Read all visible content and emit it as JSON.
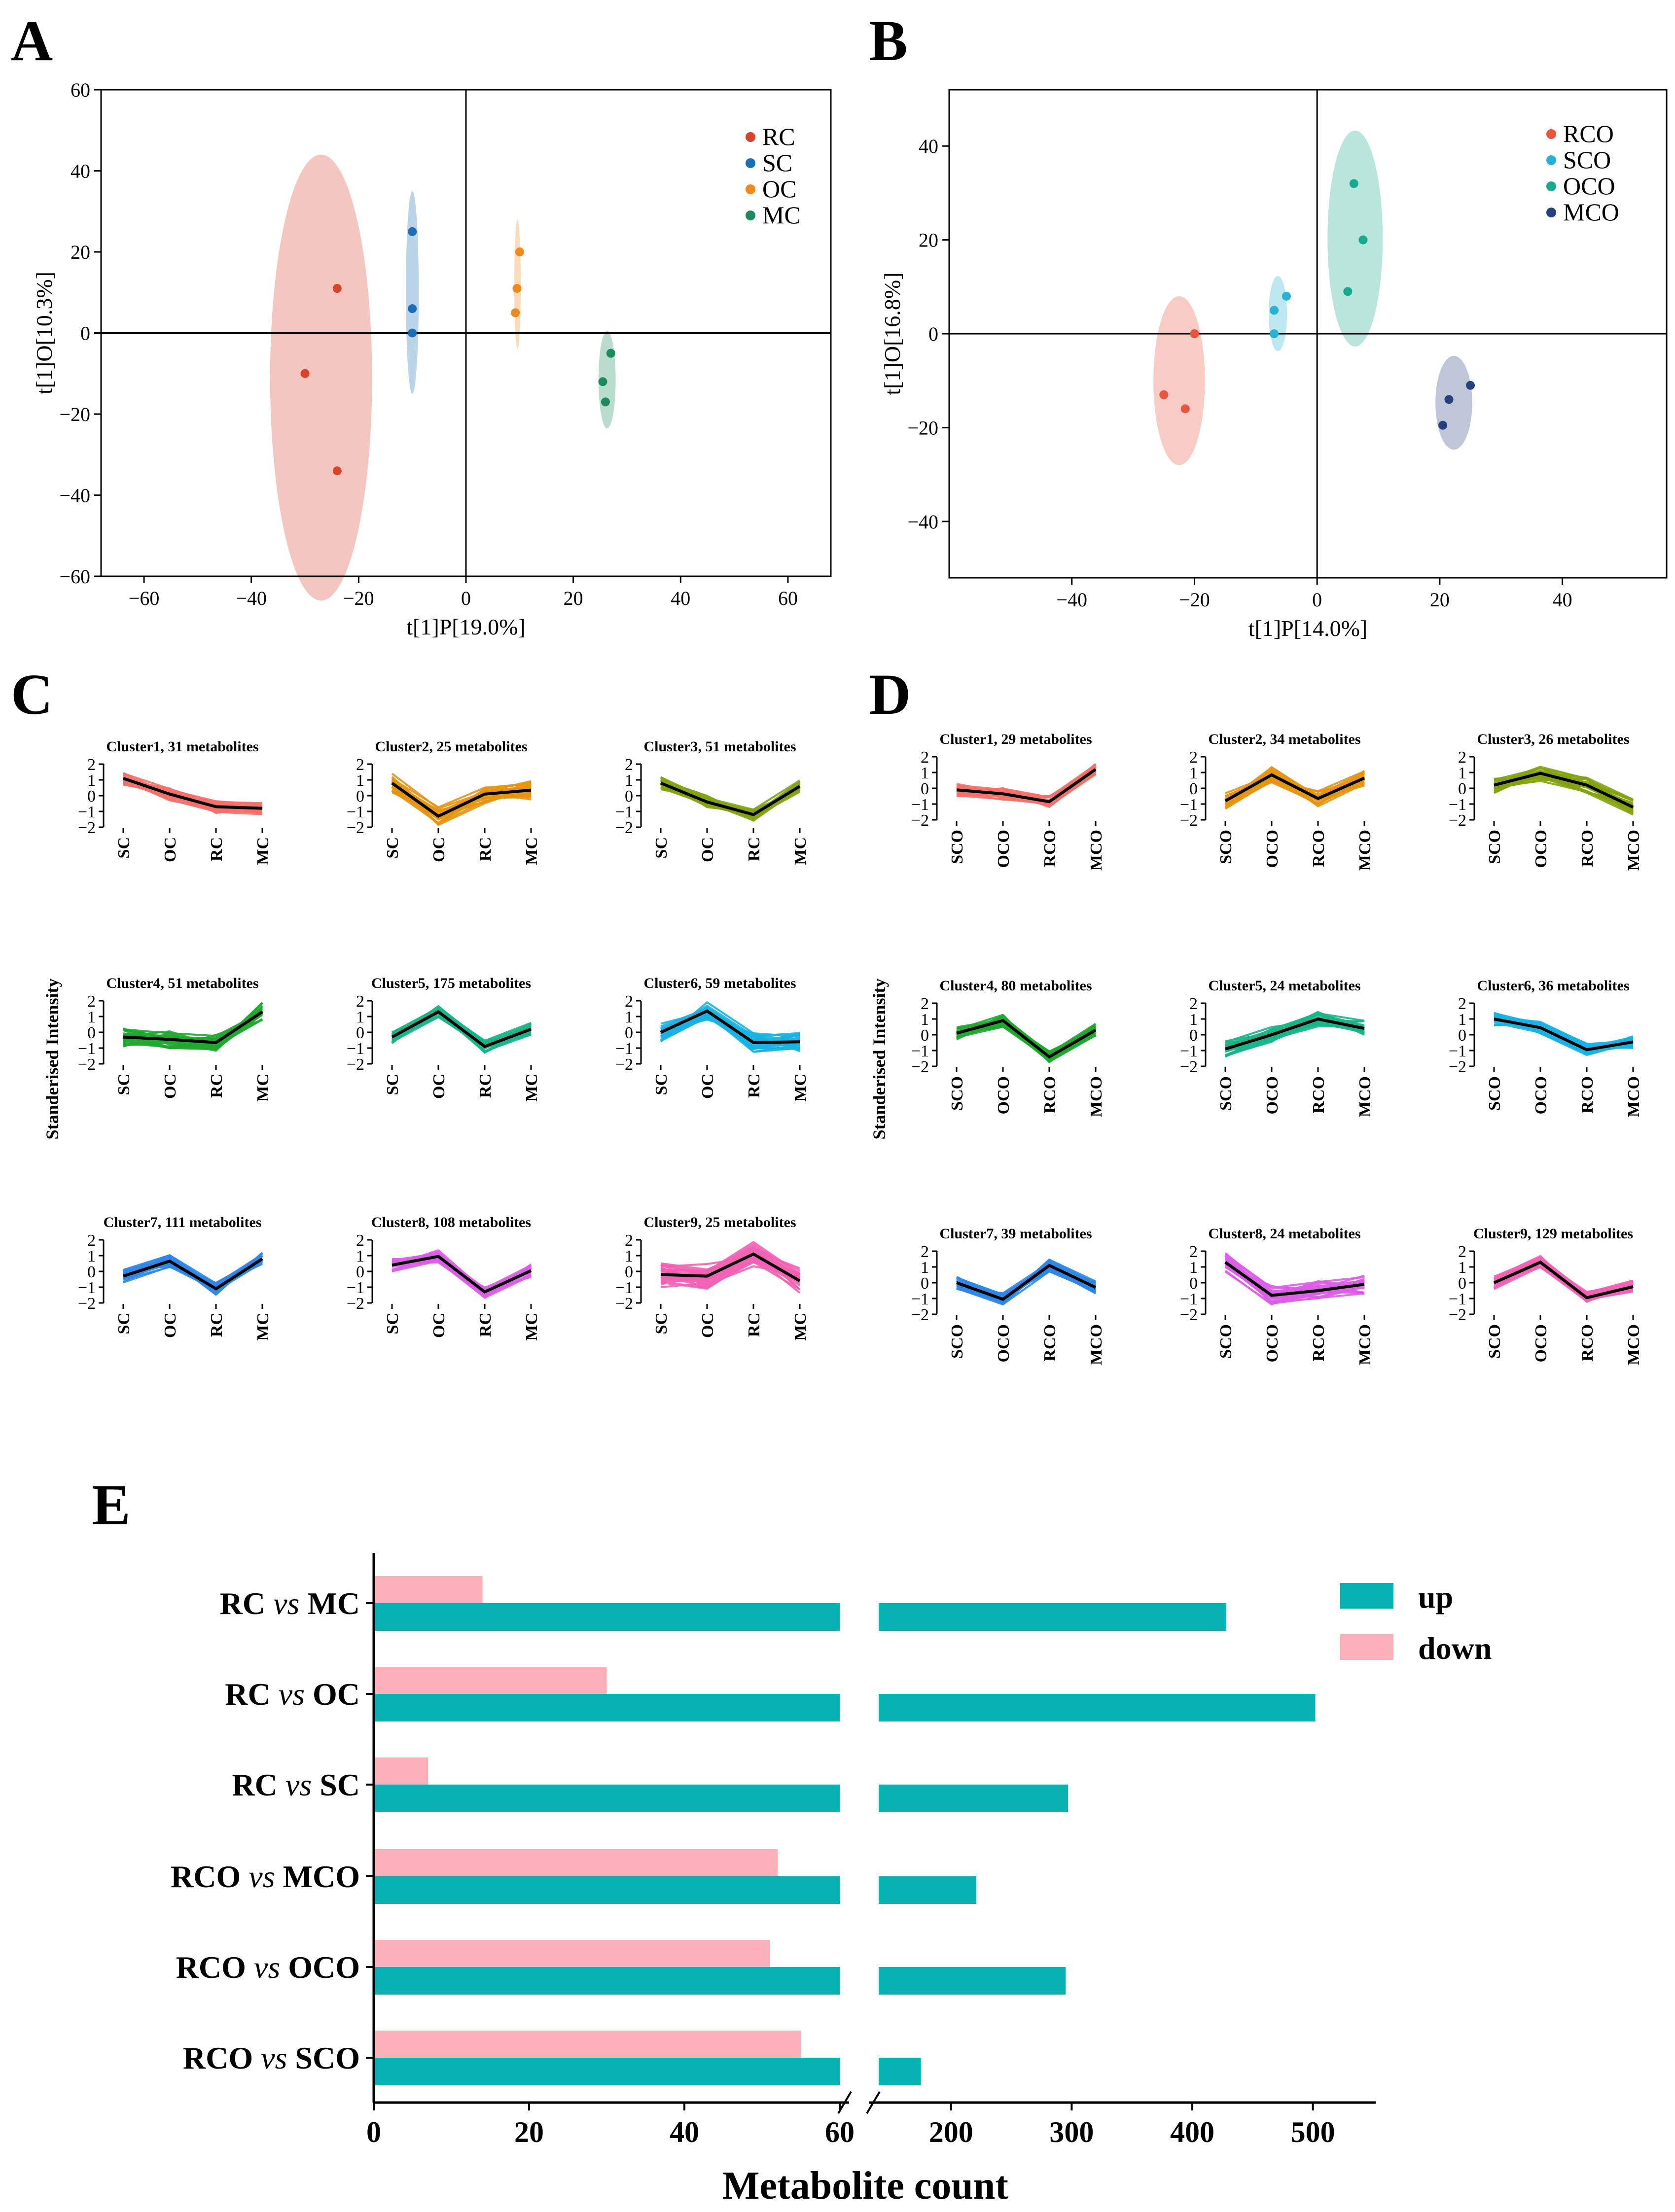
{
  "colors": {
    "RC": "#d9422b",
    "SC": "#1b6fb5",
    "OC": "#f0891b",
    "MC": "#1c8a5c",
    "RCO": "#e8543d",
    "SCO": "#27b3d1",
    "OCO": "#17a890",
    "MCO": "#27417a",
    "up": "#08b2b4",
    "down": "#fbb0b9"
  },
  "chart_data": [
    {
      "panel": "A",
      "type": "scatter",
      "xlabel": "t[1]P[19.0%]",
      "ylabel": "t[1]O[10.3%]",
      "xlim": [
        -68,
        68
      ],
      "ylim": [
        -60,
        60
      ],
      "xticks": [
        -60,
        -40,
        -20,
        0,
        20,
        40,
        60
      ],
      "yticks": [
        -60,
        -40,
        -20,
        0,
        20,
        40,
        60
      ],
      "legend": [
        "RC",
        "SC",
        "OC",
        "MC"
      ],
      "series": [
        {
          "name": "RC",
          "points": [
            [
              -24,
              11
            ],
            [
              -30,
              -10
            ],
            [
              -24,
              -34
            ]
          ],
          "ellipse": {
            "cx": -27,
            "cy": -11,
            "rx": 9.5,
            "ry": 55
          }
        },
        {
          "name": "SC",
          "points": [
            [
              -10,
              25
            ],
            [
              -10,
              6
            ],
            [
              -10,
              0
            ]
          ],
          "ellipse": {
            "cx": -10,
            "cy": 10,
            "rx": 1.2,
            "ry": 25
          }
        },
        {
          "name": "OC",
          "points": [
            [
              10,
              20
            ],
            [
              9.5,
              11
            ],
            [
              9.2,
              5
            ]
          ],
          "ellipse": {
            "cx": 9.6,
            "cy": 12,
            "rx": 0.6,
            "ry": 16
          }
        },
        {
          "name": "MC",
          "points": [
            [
              27,
              -5
            ],
            [
              25.5,
              -12
            ],
            [
              26,
              -17
            ]
          ],
          "ellipse": {
            "cx": 26.3,
            "cy": -11.5,
            "rx": 1.6,
            "ry": 12
          }
        }
      ]
    },
    {
      "panel": "B",
      "type": "scatter",
      "xlabel": "t[1]P[14.0%]",
      "ylabel": "t[1]O[16.8%]",
      "xlim": [
        -60,
        57
      ],
      "ylim": [
        -52,
        52
      ],
      "xticks": [
        -40,
        -20,
        0,
        20,
        40
      ],
      "yticks": [
        -40,
        -20,
        0,
        20,
        40
      ],
      "legend": [
        "RCO",
        "SCO",
        "OCO",
        "MCO"
      ],
      "series": [
        {
          "name": "RCO",
          "points": [
            [
              -20,
              0
            ],
            [
              -25,
              -13
            ],
            [
              -21.5,
              -16
            ]
          ],
          "ellipse": {
            "cx": -22.5,
            "cy": -10,
            "rx": 4.2,
            "ry": 18
          }
        },
        {
          "name": "SCO",
          "points": [
            [
              -5,
              8
            ],
            [
              -7,
              5
            ],
            [
              -7,
              0
            ]
          ],
          "ellipse": {
            "cx": -6.4,
            "cy": 4.3,
            "rx": 1.5,
            "ry": 8
          }
        },
        {
          "name": "OCO",
          "points": [
            [
              6,
              32
            ],
            [
              7.5,
              20
            ],
            [
              5,
              9
            ]
          ],
          "ellipse": {
            "cx": 6.2,
            "cy": 20.3,
            "rx": 4.5,
            "ry": 23
          }
        },
        {
          "name": "MCO",
          "points": [
            [
              25,
              -11
            ],
            [
              21.5,
              -14
            ],
            [
              20.5,
              -19.5
            ]
          ],
          "ellipse": {
            "cx": 22.3,
            "cy": -14.7,
            "rx": 3,
            "ry": 10
          }
        }
      ]
    },
    {
      "panel": "C",
      "type": "line",
      "ylabel": "Standerised Intensity",
      "ylim": [
        -2,
        2
      ],
      "yticks": [
        -2,
        -1,
        0,
        1,
        2
      ],
      "categories": [
        "SC",
        "OC",
        "RC",
        "MC"
      ],
      "clusters": [
        {
          "title": "Cluster1, 31 metabolites",
          "color": "#f4706a",
          "mean": [
            1.1,
            0.1,
            -0.7,
            -0.8
          ],
          "spread": 0.4
        },
        {
          "title": "Cluster2, 25 metabolites",
          "color": "#e6950f",
          "mean": [
            0.8,
            -1.3,
            0.1,
            0.35
          ],
          "spread": 0.6
        },
        {
          "title": "Cluster3, 51 metabolites",
          "color": "#83a30f",
          "mean": [
            0.8,
            -0.4,
            -1.2,
            0.6
          ],
          "spread": 0.4
        },
        {
          "title": "Cluster4, 51 metabolites",
          "color": "#1daa2f",
          "mean": [
            -0.3,
            -0.45,
            -0.65,
            1.3
          ],
          "spread": 0.6
        },
        {
          "title": "Cluster5, 175 metabolites",
          "color": "#17b58a",
          "mean": [
            -0.3,
            1.3,
            -0.9,
            0.2
          ],
          "spread": 0.4
        },
        {
          "title": "Cluster6, 59 metabolites",
          "color": "#16b3e4",
          "mean": [
            0.0,
            1.35,
            -0.65,
            -0.6
          ],
          "spread": 0.6
        },
        {
          "title": "Cluster7, 111 metabolites",
          "color": "#2f87e8",
          "mean": [
            -0.3,
            0.65,
            -1.1,
            0.8
          ],
          "spread": 0.4
        },
        {
          "title": "Cluster8, 108 metabolites",
          "color": "#dd5ee6",
          "mean": [
            0.4,
            0.95,
            -1.3,
            0.05
          ],
          "spread": 0.4
        },
        {
          "title": "Cluster9, 25 metabolites",
          "color": "#f262b4",
          "mean": [
            -0.2,
            -0.3,
            1.1,
            -0.6
          ],
          "spread": 0.8
        }
      ]
    },
    {
      "panel": "D",
      "type": "line",
      "ylabel": "Standerised Intensity",
      "ylim": [
        -2,
        2
      ],
      "yticks": [
        -2,
        -1,
        0,
        1,
        2
      ],
      "categories": [
        "SCO",
        "OCO",
        "RCO",
        "MCO"
      ],
      "clusters": [
        {
          "title": "Cluster1, 29 metabolites",
          "color": "#f4706a",
          "mean": [
            -0.1,
            -0.35,
            -0.85,
            1.2
          ],
          "spread": 0.4
        },
        {
          "title": "Cluster2, 34 metabolites",
          "color": "#e6950f",
          "mean": [
            -0.8,
            0.85,
            -0.65,
            0.65
          ],
          "spread": 0.5
        },
        {
          "title": "Cluster3, 26 metabolites",
          "color": "#83a30f",
          "mean": [
            0.2,
            0.95,
            0.2,
            -1.2
          ],
          "spread": 0.5
        },
        {
          "title": "Cluster4, 80 metabolites",
          "color": "#1daa2f",
          "mean": [
            0.1,
            0.9,
            -1.4,
            0.3
          ],
          "spread": 0.4
        },
        {
          "title": "Cluster5, 24 metabolites",
          "color": "#17b58a",
          "mean": [
            -0.9,
            0.0,
            1.0,
            0.4
          ],
          "spread": 0.5
        },
        {
          "title": "Cluster6, 36 metabolites",
          "color": "#16b3e4",
          "mean": [
            1.0,
            0.45,
            -0.95,
            -0.45
          ],
          "spread": 0.4
        },
        {
          "title": "Cluster7, 39 metabolites",
          "color": "#2f87e8",
          "mean": [
            0.0,
            -1.05,
            1.1,
            -0.3
          ],
          "spread": 0.4
        },
        {
          "title": "Cluster8, 24 metabolites",
          "color": "#dd5ee6",
          "mean": [
            1.3,
            -0.8,
            -0.5,
            -0.1
          ],
          "spread": 0.6
        },
        {
          "title": "Cluster9, 129 metabolites",
          "color": "#f262b4",
          "mean": [
            0.0,
            1.3,
            -0.95,
            -0.25
          ],
          "spread": 0.4
        }
      ]
    },
    {
      "panel": "E",
      "type": "bar",
      "orientation": "horizontal",
      "xlabel": "Metabolite count",
      "categories": [
        "RC vs MC",
        "RC vs OC",
        "RC vs SC",
        "RCO vs MCO",
        "RCO vs OCO",
        "RCO vs SCO"
      ],
      "category_parts": [
        [
          "RC ",
          "vs",
          " MC"
        ],
        [
          "RC ",
          "vs",
          " OC"
        ],
        [
          "RC ",
          "vs",
          " SC"
        ],
        [
          "RCO ",
          "vs",
          " MCO"
        ],
        [
          "RCO ",
          "vs",
          " OCO"
        ],
        [
          "RCO ",
          "vs",
          " SCO"
        ]
      ],
      "series": [
        {
          "name": "up",
          "values": [
            428,
            502,
            297,
            221,
            295,
            175
          ]
        },
        {
          "name": "down",
          "values": [
            14,
            30,
            7,
            52,
            51,
            55
          ]
        }
      ],
      "axis_break": {
        "left_range": [
          0,
          60
        ],
        "right_range": [
          140,
          550
        ]
      },
      "xticks_left": [
        0,
        20,
        40,
        60
      ],
      "xticks_right": [
        200,
        300,
        400,
        500
      ],
      "legend": [
        "up",
        "down"
      ]
    }
  ]
}
